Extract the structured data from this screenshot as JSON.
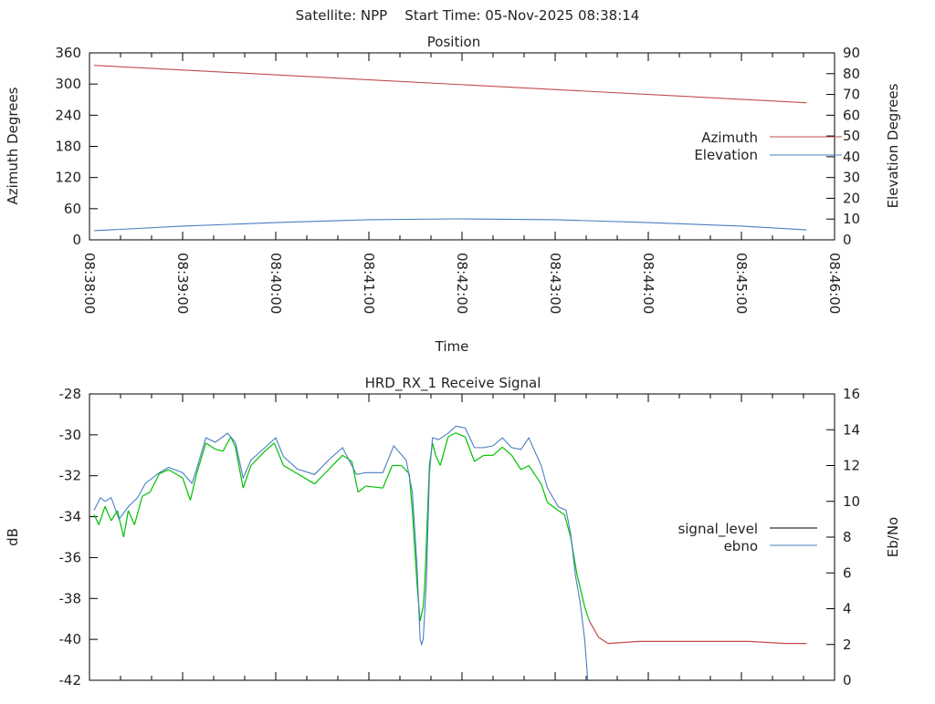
{
  "header": {
    "title": "Satellite: NPP    Start Time: 05-Nov-2025 08:38:14"
  },
  "colors": {
    "azimuth": "#c04a4a",
    "elevation": "#4a7fc0",
    "signal_good": "#00c000",
    "signal_low": "#c04a4a",
    "ebno": "#4a7fc0",
    "signal_legend": "#000000"
  },
  "chart_data": [
    {
      "type": "line",
      "title": "Position",
      "xlabel": "Time",
      "ylabel": "Azimuth Degrees",
      "y2label": "Elevation Degrees",
      "xlim": [
        "08:38:00",
        "08:46:00"
      ],
      "ylim": [
        0,
        360
      ],
      "y2lim": [
        0,
        90
      ],
      "x_ticks": [
        "08:38:00",
        "08:39:00",
        "08:40:00",
        "08:41:00",
        "08:42:00",
        "08:43:00",
        "08:44:00",
        "08:45:00",
        "08:46:00"
      ],
      "y_ticks": [
        "0",
        "60",
        "120",
        "180",
        "240",
        "300",
        "360"
      ],
      "y2_ticks": [
        "0",
        "10",
        "20",
        "30",
        "40",
        "50",
        "60",
        "70",
        "80",
        "90"
      ],
      "legend_position": "right",
      "grid": false,
      "series": [
        {
          "name": "Azimuth",
          "axis": "y",
          "x": [
            "08:38:03",
            "08:45:42"
          ],
          "y": [
            336,
            264
          ]
        },
        {
          "name": "Elevation",
          "axis": "y2",
          "x": [
            "08:38:03",
            "08:39:00",
            "08:40:00",
            "08:41:00",
            "08:41:56",
            "08:43:00",
            "08:44:00",
            "08:45:00",
            "08:45:42"
          ],
          "y": [
            4.4,
            6.6,
            8.3,
            9.7,
            10.1,
            9.7,
            8.3,
            6.6,
            4.8
          ]
        }
      ]
    },
    {
      "type": "line",
      "title": "HRD_RX_1 Receive Signal",
      "ylabel": "dB",
      "y2label": "Eb/No",
      "xlim": [
        "08:38:00",
        "08:46:00"
      ],
      "ylim": [
        -42,
        -28
      ],
      "y2lim": [
        0,
        16
      ],
      "y_ticks": [
        "-42",
        "-40",
        "-38",
        "-36",
        "-34",
        "-32",
        "-30",
        "-28"
      ],
      "y2_ticks": [
        "0",
        "2",
        "4",
        "6",
        "8",
        "10",
        "12",
        "14",
        "16"
      ],
      "legend_position": "right",
      "grid": false,
      "series": [
        {
          "name": "signal_level",
          "axis": "y",
          "x": [
            "08:38:03",
            "08:38:06",
            "08:38:10",
            "08:38:14",
            "08:38:18",
            "08:38:22",
            "08:38:25",
            "08:38:29",
            "08:38:34",
            "08:38:39",
            "08:38:45",
            "08:38:51",
            "08:39:00",
            "08:39:05",
            "08:39:09",
            "08:39:15",
            "08:39:21",
            "08:39:26",
            "08:39:31",
            "08:39:34",
            "08:39:39",
            "08:39:44",
            "08:39:53",
            "08:39:59",
            "08:40:05",
            "08:40:14",
            "08:40:25",
            "08:40:34",
            "08:40:43",
            "08:40:49",
            "08:40:53",
            "08:40:58",
            "08:41:09",
            "08:41:15",
            "08:41:21",
            "08:41:26",
            "08:41:28",
            "08:41:31",
            "08:41:33",
            "08:41:35",
            "08:41:36",
            "08:41:39",
            "08:41:41",
            "08:41:43",
            "08:41:46",
            "08:41:51",
            "08:41:56",
            "08:42:02",
            "08:42:08",
            "08:42:14",
            "08:42:20",
            "08:42:26",
            "08:42:32",
            "08:42:38",
            "08:42:43",
            "08:42:51",
            "08:42:55",
            "08:43:02",
            "08:43:06",
            "08:43:10",
            "08:43:14",
            "08:43:19",
            "08:43:22",
            "08:43:25",
            "08:43:28",
            "08:43:34",
            "08:43:54",
            "08:44:29",
            "08:45:05",
            "08:45:28",
            "08:45:42"
          ],
          "y": [
            -33.9,
            -34.4,
            -33.5,
            -34.2,
            -33.7,
            -35.0,
            -33.7,
            -34.4,
            -33.0,
            -32.8,
            -31.9,
            -31.7,
            -32.1,
            -33.2,
            -31.9,
            -30.4,
            -30.7,
            -30.8,
            -30.1,
            -30.6,
            -32.6,
            -31.5,
            -30.8,
            -30.4,
            -31.5,
            -31.9,
            -32.4,
            -31.7,
            -31.0,
            -31.3,
            -32.8,
            -32.5,
            -32.6,
            -31.5,
            -31.5,
            -31.9,
            -33.7,
            -37.3,
            -39.1,
            -38.4,
            -37.3,
            -31.5,
            -30.4,
            -31.0,
            -31.5,
            -30.1,
            -29.9,
            -30.1,
            -31.3,
            -31.0,
            -31.0,
            -30.6,
            -31.0,
            -31.7,
            -31.5,
            -32.4,
            -33.3,
            -33.7,
            -33.9,
            -35.0,
            -36.8,
            -38.4,
            -39.1,
            -39.5,
            -39.9,
            -40.2,
            -40.1,
            -40.1,
            -40.1,
            -40.2,
            -40.2
          ]
        },
        {
          "name": "ebno",
          "axis": "y2",
          "x": [
            "08:38:03",
            "08:38:07",
            "08:38:10",
            "08:38:14",
            "08:38:19",
            "08:38:25",
            "08:38:31",
            "08:38:36",
            "08:38:45",
            "08:38:51",
            "08:39:00",
            "08:39:06",
            "08:39:09",
            "08:39:15",
            "08:39:21",
            "08:39:29",
            "08:39:34",
            "08:39:39",
            "08:39:44",
            "08:39:53",
            "08:40:00",
            "08:40:05",
            "08:40:14",
            "08:40:25",
            "08:40:34",
            "08:40:43",
            "08:40:52",
            "08:40:58",
            "08:41:09",
            "08:41:16",
            "08:41:24",
            "08:41:28",
            "08:41:31",
            "08:41:33",
            "08:41:34",
            "08:41:35",
            "08:41:37",
            "08:41:39",
            "08:41:41",
            "08:41:45",
            "08:41:51",
            "08:41:56",
            "08:42:02",
            "08:42:08",
            "08:42:14",
            "08:42:20",
            "08:42:26",
            "08:42:32",
            "08:42:38",
            "08:42:43",
            "08:42:51",
            "08:42:55",
            "08:43:02",
            "08:43:07",
            "08:43:10",
            "08:43:13",
            "08:43:16",
            "08:43:19",
            "08:43:21",
            "08:43:23"
          ],
          "y": [
            9.5,
            10.2,
            10.0,
            10.2,
            9.0,
            9.7,
            10.2,
            11.0,
            11.6,
            11.9,
            11.6,
            11.0,
            11.8,
            13.55,
            13.3,
            13.8,
            13.3,
            11.3,
            12.3,
            13.0,
            13.55,
            12.5,
            11.8,
            11.5,
            12.3,
            13.0,
            11.5,
            11.6,
            11.6,
            13.1,
            12.3,
            10.5,
            6.4,
            2.3,
            2.0,
            2.3,
            5.4,
            11.5,
            13.55,
            13.45,
            13.8,
            14.2,
            14.1,
            13.0,
            13.0,
            13.1,
            13.55,
            13.0,
            12.9,
            13.55,
            12.0,
            10.75,
            9.7,
            9.5,
            8.2,
            5.9,
            4.4,
            2.3,
            0.0,
            -0.8
          ]
        }
      ]
    }
  ]
}
